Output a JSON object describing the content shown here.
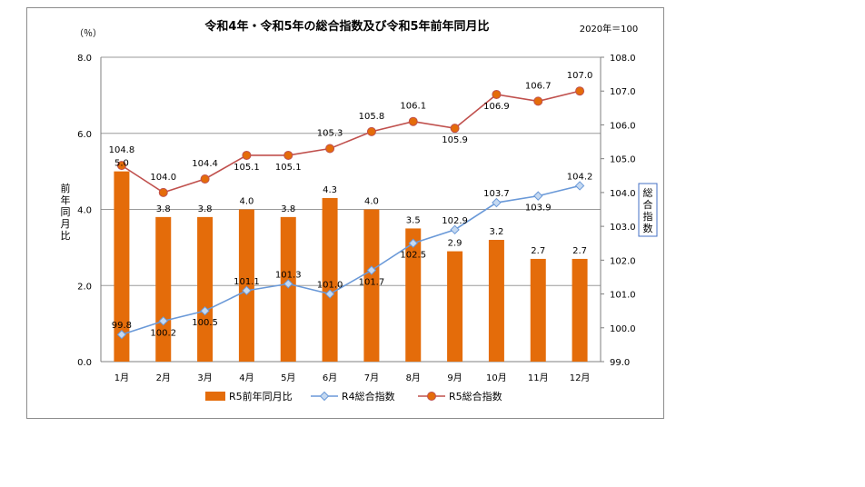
{
  "chart_data": {
    "type": "bar+line",
    "title": "令和4年・令和5年の総合指数及び令和5年前年同月比",
    "base_note": "2020年＝100",
    "left_unit": "（％）",
    "left_axis_label": [
      "前",
      "年",
      "同",
      "月",
      "比"
    ],
    "right_axis_label": [
      "総",
      "合",
      "指",
      "数"
    ],
    "categories": [
      "1月",
      "2月",
      "3月",
      "4月",
      "5月",
      "6月",
      "7月",
      "8月",
      "9月",
      "10月",
      "11月",
      "12月"
    ],
    "left_ylim": [
      0,
      8
    ],
    "left_ticks": [
      "0.0",
      "2.0",
      "4.0",
      "6.0",
      "8.0"
    ],
    "right_ylim": [
      99,
      108
    ],
    "right_ticks": [
      "99.0",
      "100.0",
      "101.0",
      "102.0",
      "103.0",
      "104.0",
      "105.0",
      "106.0",
      "107.0",
      "108.0"
    ],
    "series": [
      {
        "name": "R5前年同月比",
        "kind": "bar",
        "axis": "left",
        "color": "#E46C0A",
        "values": [
          5.0,
          3.8,
          3.8,
          4.0,
          3.8,
          4.3,
          4.0,
          3.5,
          2.9,
          3.2,
          2.7,
          2.7
        ],
        "labels": [
          "5.0",
          "3.8",
          "3.8",
          "4.0",
          "3.8",
          "4.3",
          "4.0",
          "3.5",
          "2.9",
          "3.2",
          "2.7",
          "2.7"
        ]
      },
      {
        "name": "R4総合指数",
        "kind": "line",
        "axis": "right",
        "color": "#6A99D8",
        "marker": "diamond",
        "values": [
          99.8,
          100.2,
          100.5,
          101.1,
          101.3,
          101.0,
          101.7,
          102.5,
          102.9,
          103.7,
          103.9,
          104.2
        ],
        "labels": [
          "99.8",
          "100.2",
          "100.5",
          "101.1",
          "101.3",
          "101.0",
          "101.7",
          "102.5",
          "102.9",
          "103.7",
          "103.9",
          "104.2"
        ]
      },
      {
        "name": "R5総合指数",
        "kind": "line",
        "axis": "right",
        "color": "#C0504D",
        "marker": "circle",
        "values": [
          104.8,
          104.0,
          104.4,
          105.1,
          105.1,
          105.3,
          105.8,
          106.1,
          105.9,
          106.9,
          106.7,
          107.0
        ],
        "labels": [
          "104.8",
          "104.0",
          "104.4",
          "105.1",
          "105.1",
          "105.3",
          "105.8",
          "106.1",
          "105.9",
          "106.9",
          "106.7",
          "107.0"
        ]
      }
    ],
    "legend_position": "bottom"
  }
}
